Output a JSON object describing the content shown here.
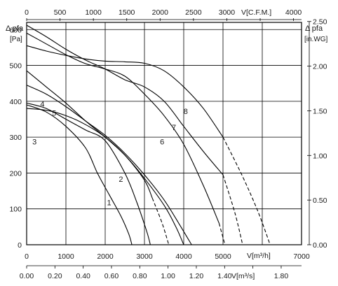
{
  "chart_data": {
    "type": "line",
    "title": "",
    "axes": {
      "bottom": {
        "label": "V[m³/h]",
        "range": [
          0,
          7000
        ],
        "ticks": [
          0,
          1000,
          2000,
          3000,
          4000,
          5000,
          6000,
          7000
        ],
        "tick_labels": [
          "0",
          "1000",
          "2000",
          "3000",
          "4000",
          "5000",
          "",
          "7000"
        ]
      },
      "bottom2": {
        "label": "V[m³/s]",
        "range": [
          0,
          1.944
        ],
        "ticks": [
          0,
          0.2,
          0.4,
          0.6,
          0.8,
          1.0,
          1.2,
          1.4,
          1.6,
          1.8
        ],
        "tick_labels": [
          "0.00",
          "0.20",
          "0.40",
          "0.60",
          "0.80",
          "1.00",
          "1.20",
          "1.40",
          "",
          "1.80"
        ]
      },
      "top": {
        "label": "V[C.F.M.]",
        "range": [
          0,
          4120
        ],
        "ticks": [
          0,
          500,
          1000,
          1500,
          2000,
          2500,
          3000,
          3500,
          4000
        ],
        "tick_labels": [
          "0",
          "500",
          "1000",
          "1500",
          "2000",
          "2500",
          "3000",
          "",
          "4000"
        ]
      },
      "left": {
        "label_line1": "Δ pfa",
        "label_line2": "[Pa]",
        "range": [
          0,
          620
        ],
        "ticks": [
          0,
          100,
          200,
          300,
          400,
          500,
          600
        ],
        "tick_labels": [
          "0",
          "100",
          "200",
          "300",
          "400",
          "500",
          "600"
        ]
      },
      "right": {
        "label_line1": "Δ pfa",
        "label_line2": "[in.WG]",
        "range": [
          0,
          2.49
        ],
        "ticks": [
          0,
          0.5,
          1.0,
          1.5,
          2.0,
          2.5
        ],
        "tick_labels": [
          "0.00",
          "0.50",
          "1.00",
          "1.50",
          "2.00",
          "2.50"
        ]
      }
    },
    "grid": true,
    "series": [
      {
        "name": "1",
        "solid": [
          [
            0,
            390
          ],
          [
            500,
            370
          ],
          [
            1000,
            330
          ],
          [
            1500,
            270
          ],
          [
            1800,
            200
          ],
          [
            2100,
            140
          ],
          [
            2400,
            80
          ],
          [
            2600,
            30
          ],
          [
            2680,
            0
          ]
        ]
      },
      {
        "name": "2",
        "solid": [
          [
            0,
            395
          ],
          [
            500,
            380
          ],
          [
            1000,
            350
          ],
          [
            1500,
            320
          ],
          [
            2000,
            290
          ],
          [
            2500,
            200
          ],
          [
            2800,
            120
          ],
          [
            3050,
            40
          ],
          [
            3150,
            0
          ]
        ]
      },
      {
        "name": "3",
        "solid": [
          [
            0,
            380
          ],
          [
            500,
            375
          ],
          [
            1000,
            360
          ],
          [
            1500,
            335
          ],
          [
            2000,
            300
          ],
          [
            2500,
            250
          ],
          [
            3000,
            180
          ],
          [
            3200,
            130
          ]
        ],
        "dashed": [
          [
            3200,
            130
          ],
          [
            3450,
            60
          ],
          [
            3620,
            0
          ]
        ]
      },
      {
        "name": "4",
        "solid": [
          [
            0,
            485
          ],
          [
            500,
            440
          ],
          [
            1000,
            395
          ],
          [
            1500,
            345
          ],
          [
            2000,
            300
          ],
          [
            2500,
            250
          ],
          [
            3000,
            185
          ],
          [
            3500,
            110
          ],
          [
            3800,
            50
          ],
          [
            4000,
            0
          ]
        ]
      },
      {
        "name": "5",
        "solid": [
          [
            0,
            445
          ],
          [
            500,
            420
          ],
          [
            1000,
            385
          ],
          [
            1500,
            345
          ],
          [
            2000,
            305
          ],
          [
            2500,
            255
          ],
          [
            3000,
            195
          ],
          [
            3500,
            125
          ],
          [
            3900,
            55
          ],
          [
            4200,
            0
          ]
        ]
      },
      {
        "name": "6",
        "solid": [
          [
            0,
            590
          ],
          [
            500,
            560
          ],
          [
            1000,
            530
          ],
          [
            1500,
            505
          ],
          [
            2000,
            490
          ],
          [
            2500,
            470
          ],
          [
            3000,
            420
          ],
          [
            3500,
            360
          ],
          [
            4000,
            280
          ],
          [
            4500,
            165
          ],
          [
            4900,
            60
          ]
        ],
        "dashed": [
          [
            4900,
            60
          ],
          [
            5050,
            0
          ]
        ]
      },
      {
        "name": "7",
        "solid": [
          [
            0,
            612
          ],
          [
            500,
            580
          ],
          [
            1000,
            545
          ],
          [
            1500,
            515
          ],
          [
            2000,
            490
          ],
          [
            2500,
            460
          ],
          [
            3000,
            440
          ],
          [
            3500,
            400
          ],
          [
            4000,
            330
          ],
          [
            4500,
            260
          ],
          [
            5000,
            195
          ]
        ],
        "dashed": [
          [
            5000,
            195
          ],
          [
            5300,
            90
          ],
          [
            5500,
            0
          ]
        ]
      },
      {
        "name": "8",
        "solid": [
          [
            0,
            555
          ],
          [
            500,
            540
          ],
          [
            1000,
            528
          ],
          [
            1500,
            518
          ],
          [
            2000,
            512
          ],
          [
            2500,
            510
          ],
          [
            3000,
            506
          ],
          [
            3500,
            485
          ],
          [
            4000,
            440
          ],
          [
            4500,
            380
          ],
          [
            5000,
            300
          ]
        ],
        "dashed": [
          [
            5000,
            300
          ],
          [
            5500,
            190
          ],
          [
            5900,
            90
          ],
          [
            6200,
            0
          ]
        ]
      }
    ],
    "curve_labels": [
      {
        "text": "1",
        "at": [
          2100,
          110
        ]
      },
      {
        "text": "2",
        "at": [
          2400,
          175
        ]
      },
      {
        "text": "3",
        "at": [
          200,
          280
        ]
      },
      {
        "text": "4",
        "at": [
          400,
          385
        ]
      },
      {
        "text": "5",
        "at": [
          700,
          360
        ]
      },
      {
        "text": "6",
        "at": [
          3450,
          280
        ]
      },
      {
        "text": "7",
        "at": [
          3750,
          320
        ]
      },
      {
        "text": "8",
        "at": [
          4050,
          365
        ]
      }
    ]
  }
}
